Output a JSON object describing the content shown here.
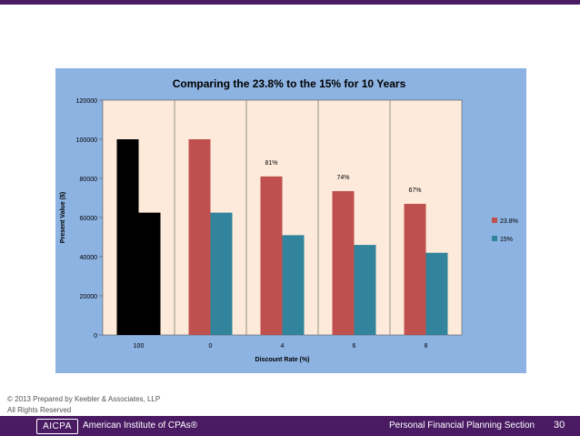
{
  "chart_data": {
    "type": "bar",
    "title": "Comparing the 23.8% to the 15% for 10 Years",
    "xlabel": "Discount Rate (%)",
    "ylabel": "Present Value ($)",
    "categories": [
      "100",
      "0",
      "4",
      "6",
      "8"
    ],
    "series": [
      {
        "name": "23.8%",
        "values": [
          100000,
          100000,
          81000,
          73500,
          67000
        ],
        "color": "#c0504d"
      },
      {
        "name": "15%",
        "values": [
          62500,
          62500,
          51000,
          46000,
          42000
        ],
        "color": "#31849b"
      }
    ],
    "first_category_color": "#000000",
    "data_labels": [
      {
        "category": "4",
        "series": "23.8%",
        "text": "81%"
      },
      {
        "category": "6",
        "series": "23.8%",
        "text": "74%"
      },
      {
        "category": "8",
        "series": "23.8%",
        "text": "67%"
      }
    ],
    "ylim": [
      0,
      120000
    ],
    "yticks": [
      0,
      20000,
      40000,
      60000,
      80000,
      100000,
      120000
    ],
    "grid": true,
    "legend_position": "right",
    "colors": {
      "chart_background": "#8db3e2",
      "plot_background": "#fdeada"
    }
  },
  "footer": {
    "copyright": "© 2013 Prepared by Keebler & Associates, LLP",
    "rights": "All Rights Reserved",
    "logo_text": "AICPA",
    "institute": "American Institute of CPAs®",
    "section": "Personal Financial Planning Section",
    "page_number": "30"
  }
}
